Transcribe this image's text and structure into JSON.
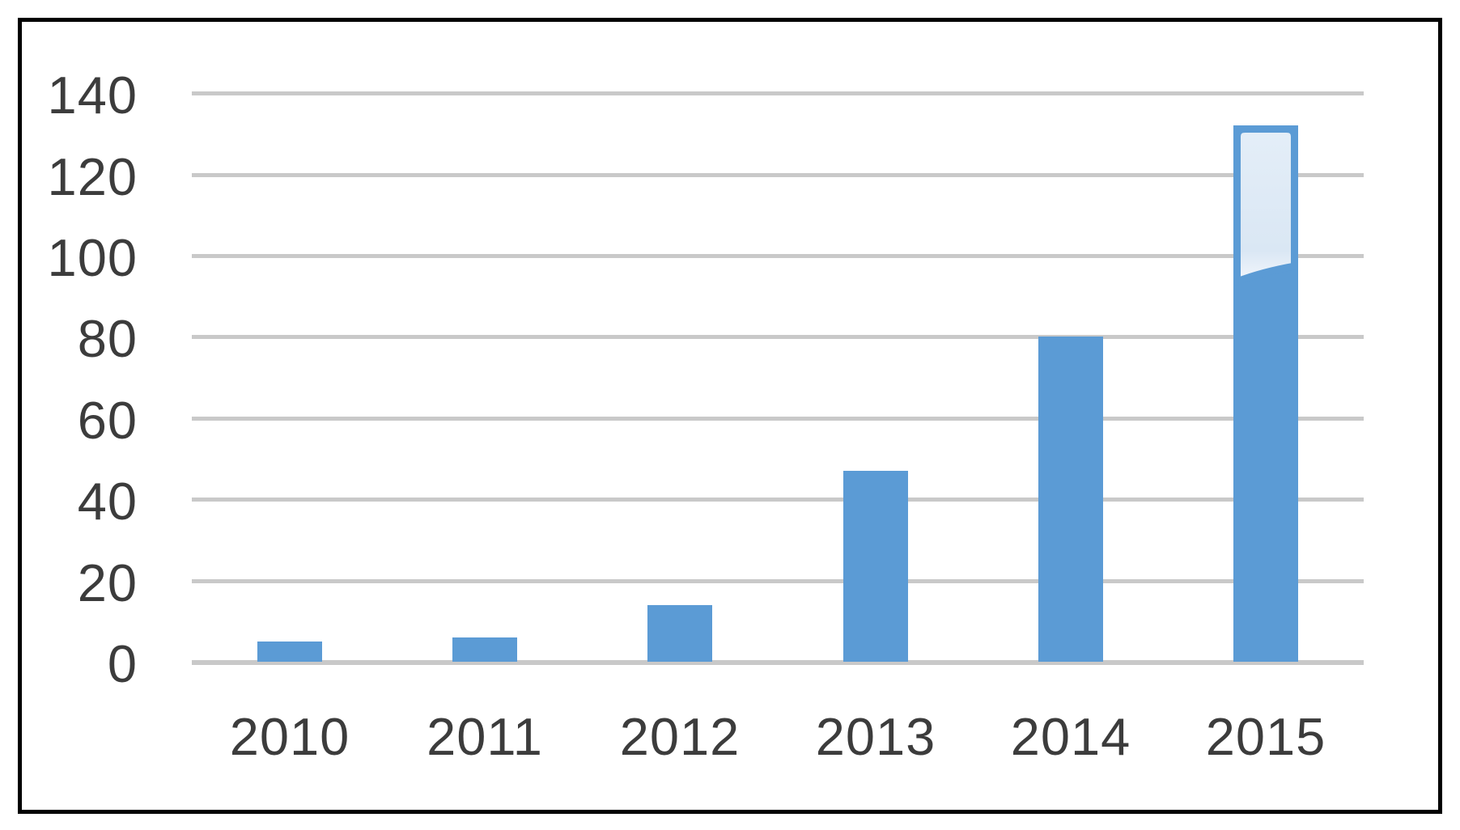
{
  "chart_data": {
    "type": "bar",
    "title": "",
    "xlabel": "",
    "ylabel": "",
    "categories": [
      "2010",
      "2011",
      "2012",
      "2013",
      "2014",
      "2015"
    ],
    "values": [
      5,
      6,
      14,
      47,
      80,
      132
    ],
    "bar_2015_segments": {
      "solid_value": 95,
      "outlined_light_segment": [
        95,
        132
      ],
      "total": 132
    },
    "ylim": [
      0,
      140
    ],
    "ytick_interval": 20,
    "yticks": [
      0,
      20,
      40,
      60,
      80,
      100,
      120,
      140
    ],
    "ytick_labels": [
      "0",
      "20",
      "40",
      "60",
      "80",
      "100",
      "120",
      "140"
    ],
    "grid": true,
    "legend": false,
    "colors": {
      "bar": "#5B9BD5",
      "bar_light_fill_top": "#E4EEF8",
      "bar_light_fill_bottom": "#DAE7F4",
      "gridline": "#C9C9C9",
      "axis_text": "#3C3C3C",
      "frame_border": "#000000",
      "background": "#FFFFFF"
    }
  }
}
